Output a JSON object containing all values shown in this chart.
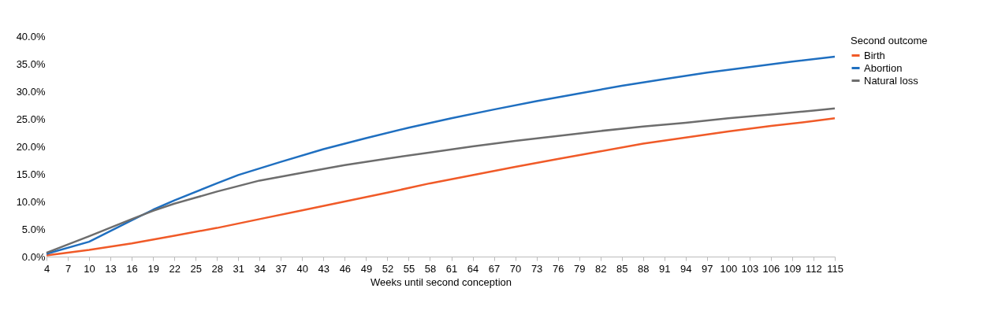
{
  "chart_data": {
    "type": "line",
    "xlabel": "Weeks until second conception",
    "legend_title": "Second outcome",
    "legend": "right",
    "xlim": [
      4,
      115
    ],
    "xticks": [
      4,
      7,
      10,
      13,
      16,
      19,
      22,
      25,
      28,
      31,
      34,
      37,
      40,
      43,
      46,
      49,
      52,
      55,
      58,
      61,
      64,
      67,
      70,
      73,
      76,
      79,
      82,
      85,
      88,
      91,
      94,
      97,
      100,
      103,
      106,
      109,
      112,
      115
    ],
    "ylim": [
      0,
      40
    ],
    "yticks": [
      {
        "value": 0,
        "label": "0.0%"
      },
      {
        "value": 5,
        "label": "5.0%"
      },
      {
        "value": 10,
        "label": "10.0%"
      },
      {
        "value": 15,
        "label": "15.0%"
      },
      {
        "value": 20,
        "label": "20.0%"
      },
      {
        "value": 25,
        "label": "25.0%"
      },
      {
        "value": 30,
        "label": "30.0%"
      },
      {
        "value": 35,
        "label": "35.0%"
      },
      {
        "value": 40,
        "label": "40.0%"
      }
    ],
    "series": [
      {
        "name": "Birth",
        "color": "#f05a28",
        "x": [
          4,
          10,
          16,
          22,
          28,
          34,
          40,
          46,
          52,
          58,
          64,
          70,
          76,
          82,
          88,
          94,
          100,
          106,
          112,
          115
        ],
        "values": [
          0.2,
          1.2,
          2.4,
          3.8,
          5.2,
          6.8,
          8.4,
          10.0,
          11.6,
          13.3,
          14.8,
          16.3,
          17.7,
          19.1,
          20.5,
          21.6,
          22.7,
          23.7,
          24.6,
          25.1
        ]
      },
      {
        "name": "Abortion",
        "color": "#1f6fc0",
        "x": [
          4,
          10,
          16,
          19,
          22,
          28,
          31,
          37,
          43,
          49,
          55,
          61,
          67,
          73,
          79,
          85,
          91,
          97,
          103,
          109,
          115
        ],
        "values": [
          0.5,
          2.7,
          6.6,
          8.5,
          10.2,
          13.3,
          14.8,
          17.2,
          19.5,
          21.5,
          23.4,
          25.1,
          26.7,
          28.2,
          29.6,
          31.0,
          32.2,
          33.4,
          34.4,
          35.4,
          36.3
        ]
      },
      {
        "name": "Natural loss",
        "color": "#6d6d6d",
        "x": [
          4,
          10,
          16,
          19,
          22,
          28,
          34,
          40,
          46,
          52,
          58,
          64,
          70,
          76,
          82,
          88,
          94,
          100,
          106,
          112,
          115
        ],
        "values": [
          0.7,
          3.7,
          6.8,
          8.3,
          9.6,
          11.8,
          13.8,
          15.2,
          16.6,
          17.8,
          18.9,
          20.0,
          21.0,
          21.9,
          22.8,
          23.6,
          24.3,
          25.1,
          25.8,
          26.5,
          26.9
        ]
      }
    ]
  }
}
